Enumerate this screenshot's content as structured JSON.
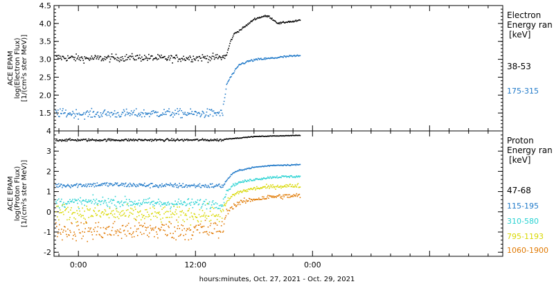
{
  "xlabel": "hours:minutes, Oct. 27, 2021 - Oct. 29, 2021",
  "chart_data": [
    {
      "type": "scatter",
      "ylabel_lines": [
        "ACE EPAM",
        "log(Electron Flux)",
        "[1/(cm²s ster MeV)]"
      ],
      "ylim": [
        1.0,
        4.5
      ],
      "yticks": [
        1.5,
        2.0,
        2.5,
        3.0,
        3.5,
        4.0,
        4.5
      ],
      "xlim_hours": [
        -2.5,
        43.5
      ],
      "xticks": [
        {
          "hours": 0,
          "label": "0:00"
        },
        {
          "hours": 12,
          "label": "12:00"
        },
        {
          "hours": 24,
          "label": "0:00"
        }
      ],
      "legend_title": [
        "Electron",
        "Energy ran",
        "[keV]"
      ],
      "series": [
        {
          "name": "38-53",
          "color": "#000000",
          "points": [
            [
              -2.3,
              3.05
            ],
            [
              1.0,
              3.02
            ],
            [
              3.0,
              3.03
            ],
            [
              6.0,
              3.05
            ],
            [
              9.0,
              3.02
            ],
            [
              12.0,
              3.04
            ],
            [
              14.8,
              3.05
            ],
            [
              15.2,
              3.12
            ],
            [
              15.6,
              3.5
            ],
            [
              16.0,
              3.72
            ],
            [
              16.5,
              3.8
            ],
            [
              17.5,
              4.0
            ],
            [
              18.0,
              4.12
            ],
            [
              19.0,
              4.2
            ],
            [
              19.5,
              4.2
            ],
            [
              20.0,
              4.1
            ],
            [
              20.5,
              4.0
            ],
            [
              21.0,
              4.02
            ],
            [
              21.5,
              4.05
            ],
            [
              22.0,
              4.05
            ],
            [
              22.6,
              4.08
            ],
            [
              22.8,
              4.1
            ]
          ],
          "noise": 0.05
        },
        {
          "name": "175-315",
          "color": "#1e78c8",
          "points": [
            [
              -2.3,
              1.5
            ],
            [
              1.0,
              1.47
            ],
            [
              3.0,
              1.48
            ],
            [
              6.0,
              1.48
            ],
            [
              9.0,
              1.5
            ],
            [
              12.0,
              1.48
            ],
            [
              14.8,
              1.5
            ],
            [
              15.2,
              2.3
            ],
            [
              15.6,
              2.5
            ],
            [
              16.5,
              2.85
            ],
            [
              17.5,
              2.95
            ],
            [
              18.5,
              3.0
            ],
            [
              19.5,
              3.02
            ],
            [
              20.5,
              3.05
            ],
            [
              21.5,
              3.08
            ],
            [
              22.8,
              3.1
            ]
          ],
          "noise": 0.06
        }
      ]
    },
    {
      "type": "scatter",
      "ylabel_lines": [
        "ACE EPAM",
        "log(Proton Flux)",
        "[1/(cm²s ster MeV)]"
      ],
      "ylim": [
        -2.2,
        4.0
      ],
      "yticks": [
        -2,
        -1,
        0,
        1,
        2,
        3,
        4
      ],
      "xlim_hours": [
        -2.5,
        43.5
      ],
      "xticks": [
        {
          "hours": 0,
          "label": "0:00"
        },
        {
          "hours": 12,
          "label": "12:00"
        },
        {
          "hours": 24,
          "label": "0:00"
        }
      ],
      "legend_title": [
        "Proton",
        "Energy ran",
        "[keV]"
      ],
      "series": [
        {
          "name": "47-68",
          "color": "#000000",
          "points": [
            [
              -2.3,
              3.55
            ],
            [
              3.0,
              3.55
            ],
            [
              8.0,
              3.55
            ],
            [
              14.8,
              3.55
            ],
            [
              15.2,
              3.6
            ],
            [
              16.5,
              3.65
            ],
            [
              18.0,
              3.72
            ],
            [
              20.0,
              3.75
            ],
            [
              22.8,
              3.78
            ]
          ],
          "noise": 0.03
        },
        {
          "name": "115-195",
          "color": "#1e78c8",
          "points": [
            [
              -2.3,
              1.3
            ],
            [
              3.0,
              1.35
            ],
            [
              8.0,
              1.3
            ],
            [
              14.8,
              1.28
            ],
            [
              15.2,
              1.55
            ],
            [
              15.8,
              1.9
            ],
            [
              16.5,
              2.05
            ],
            [
              18.0,
              2.2
            ],
            [
              20.0,
              2.3
            ],
            [
              22.8,
              2.33
            ]
          ],
          "noise": 0.06
        },
        {
          "name": "310-580",
          "color": "#28d2d2",
          "points": [
            [
              -2.3,
              0.45
            ],
            [
              3.0,
              0.5
            ],
            [
              8.0,
              0.42
            ],
            [
              14.8,
              0.4
            ],
            [
              15.2,
              1.0
            ],
            [
              15.8,
              1.3
            ],
            [
              16.5,
              1.45
            ],
            [
              18.0,
              1.6
            ],
            [
              20.0,
              1.72
            ],
            [
              22.8,
              1.75
            ]
          ],
          "noise": 0.12
        },
        {
          "name": "795-1193",
          "color": "#d8d800",
          "points": [
            [
              -2.3,
              0.0
            ],
            [
              3.0,
              -0.1
            ],
            [
              8.0,
              -0.15
            ],
            [
              14.8,
              -0.15
            ],
            [
              15.2,
              0.5
            ],
            [
              15.8,
              0.8
            ],
            [
              16.5,
              0.98
            ],
            [
              18.0,
              1.15
            ],
            [
              20.0,
              1.25
            ],
            [
              22.8,
              1.3
            ]
          ],
          "noise": 0.2
        },
        {
          "name": "1060-1900",
          "color": "#e07800",
          "points": [
            [
              -2.3,
              -0.9
            ],
            [
              3.0,
              -0.95
            ],
            [
              8.0,
              -0.9
            ],
            [
              14.8,
              -0.9
            ],
            [
              15.2,
              0.0
            ],
            [
              15.8,
              0.25
            ],
            [
              16.5,
              0.45
            ],
            [
              18.0,
              0.62
            ],
            [
              20.0,
              0.75
            ],
            [
              22.8,
              0.8
            ]
          ],
          "noise": 0.25
        }
      ]
    }
  ]
}
